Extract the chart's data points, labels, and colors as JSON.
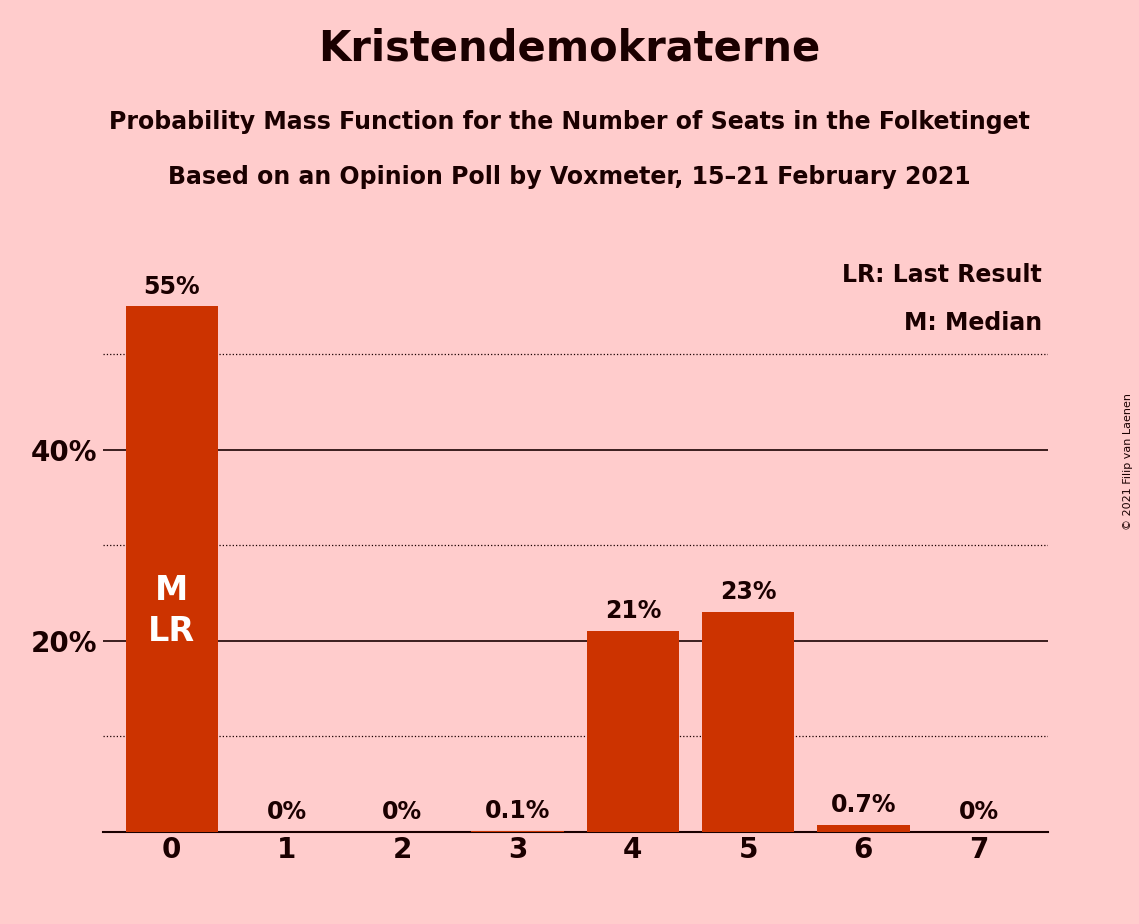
{
  "title": "Kristendemokraterne",
  "subtitle1": "Probability Mass Function for the Number of Seats in the Folketinget",
  "subtitle2": "Based on an Opinion Poll by Voxmeter, 15–21 February 2021",
  "copyright": "© 2021 Filip van Laenen",
  "legend_lr": "LR: Last Result",
  "legend_m": "M: Median",
  "categories": [
    0,
    1,
    2,
    3,
    4,
    5,
    6,
    7
  ],
  "values": [
    55,
    0,
    0,
    0.1,
    21,
    23,
    0.7,
    0
  ],
  "labels": [
    "55%",
    "0%",
    "0%",
    "0.1%",
    "21%",
    "23%",
    "0.7%",
    "0%"
  ],
  "bar_color": "#CC3300",
  "background_color": "#FFCCCC",
  "text_color": "#1a0000",
  "label_inside_color": "#FFFFFF",
  "ylim": [
    0,
    60
  ],
  "ytick_positions": [
    20,
    40
  ],
  "ytick_labels": [
    "20%",
    "40%"
  ],
  "solid_gridlines": [
    20,
    40
  ],
  "dotted_gridlines": [
    10,
    30,
    50
  ],
  "title_fontsize": 30,
  "subtitle_fontsize": 17,
  "axis_fontsize": 20,
  "label_fontsize": 17,
  "legend_fontsize": 17,
  "ml_fontsize": 24
}
